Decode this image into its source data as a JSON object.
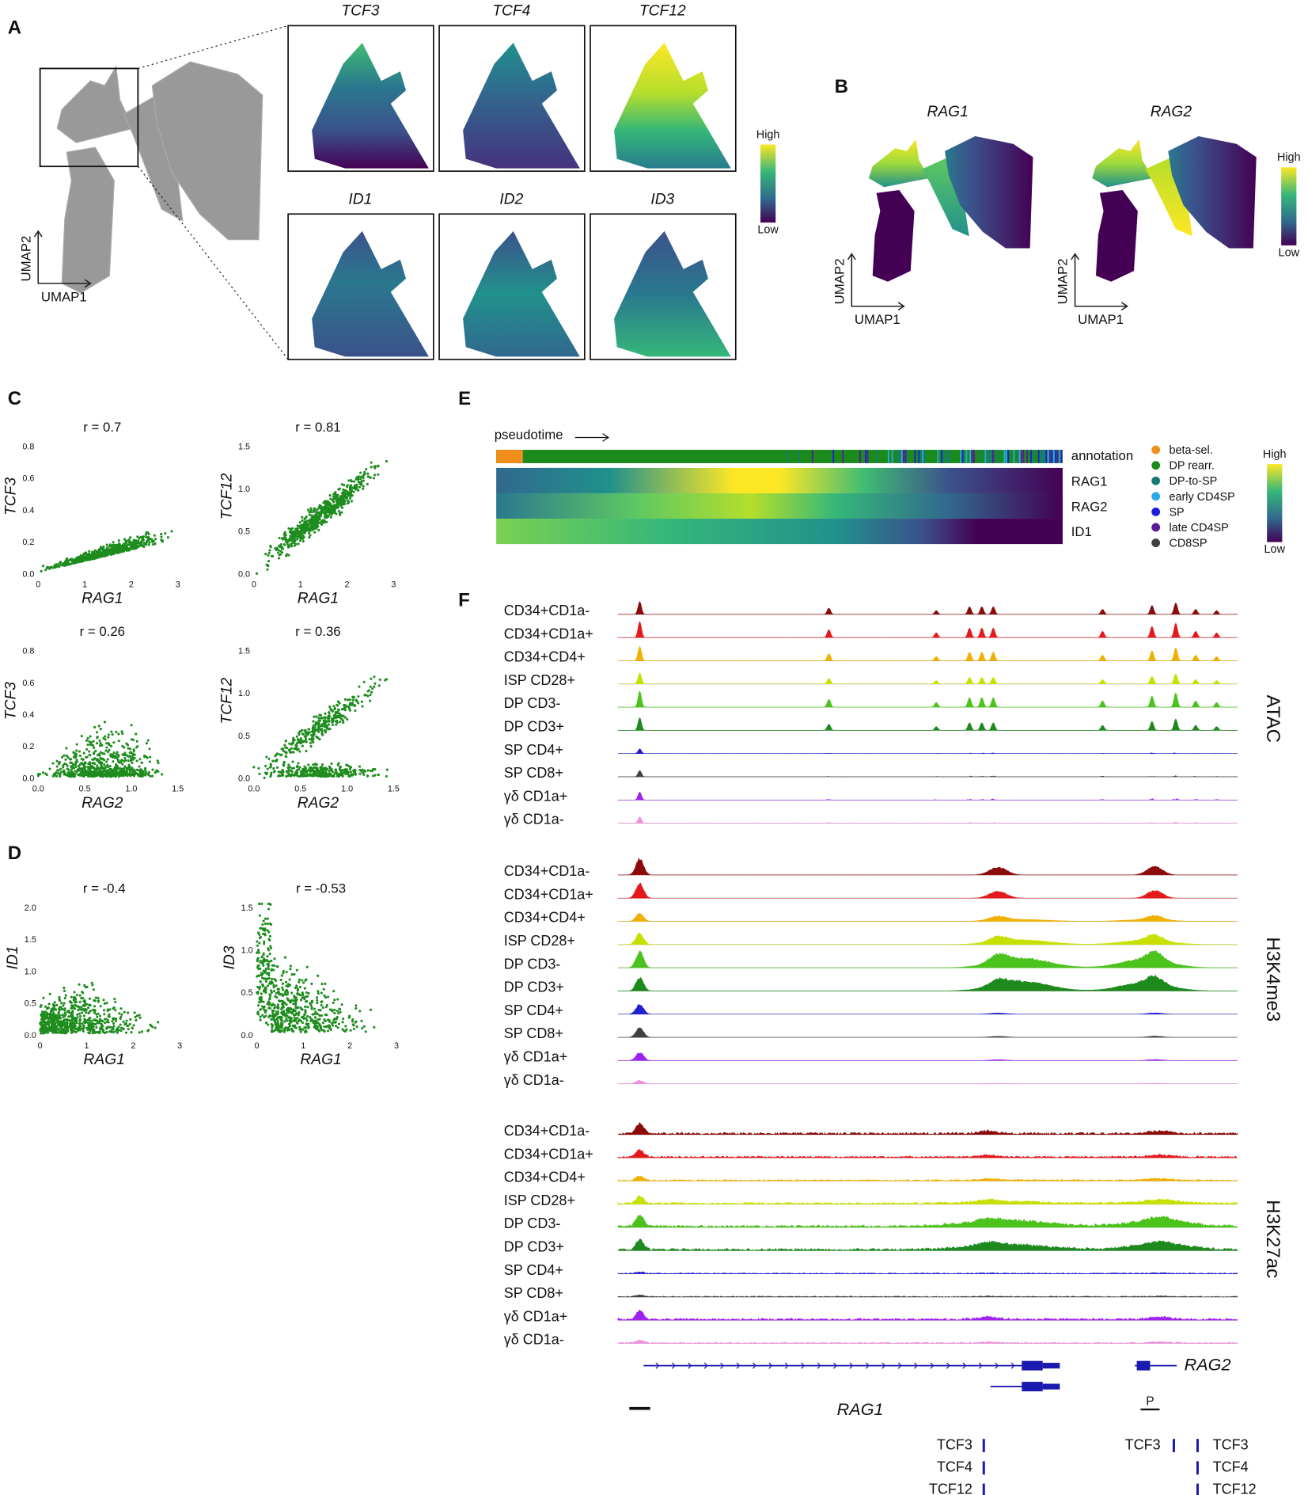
{
  "panels": {
    "A": {
      "label": "A",
      "genes": [
        "TCF3",
        "TCF4",
        "TCF12",
        "ID1",
        "ID2",
        "ID3"
      ],
      "axis_x": "UMAP1",
      "axis_y": "UMAP2",
      "legend_high": "High",
      "legend_low": "Low"
    },
    "B": {
      "label": "B",
      "genes": [
        "RAG1",
        "RAG2"
      ],
      "axis_x": "UMAP1",
      "axis_y": "UMAP2",
      "legend_high": "High",
      "legend_low": "Low"
    },
    "C": {
      "label": "C",
      "plots": [
        {
          "r": "r = 0.7",
          "x_label": "RAG1",
          "y_label": "TCF3",
          "xticks": [
            "0",
            "1",
            "2",
            "3"
          ],
          "yticks": [
            "0.0",
            "0.2",
            "0.4",
            "0.6",
            "0.8"
          ]
        },
        {
          "r": "r = 0.81",
          "x_label": "RAG1",
          "y_label": "TCF12",
          "xticks": [
            "0",
            "1",
            "2",
            "3"
          ],
          "yticks": [
            "0.0",
            "0.5",
            "1.0",
            "1.5"
          ]
        },
        {
          "r": "r = 0.26",
          "x_label": "RAG2",
          "y_label": "TCF3",
          "xticks": [
            "0.0",
            "0.5",
            "1.0",
            "1.5"
          ],
          "yticks": [
            "0.0",
            "0.2",
            "0.4",
            "0.6",
            "0.8"
          ]
        },
        {
          "r": "r = 0.36",
          "x_label": "RAG2",
          "y_label": "TCF12",
          "xticks": [
            "0.0",
            "0.5",
            "1.0",
            "1.5"
          ],
          "yticks": [
            "0.0",
            "0.5",
            "1.0",
            "1.5"
          ]
        }
      ]
    },
    "D": {
      "label": "D",
      "plots": [
        {
          "r": "r = -0.4",
          "x_label": "RAG1",
          "y_label": "ID1",
          "xticks": [
            "0",
            "1",
            "2",
            "3"
          ],
          "yticks": [
            "0.0",
            "0.5",
            "1.0",
            "1.5",
            "2.0"
          ]
        },
        {
          "r": "r = -0.53",
          "x_label": "RAG1",
          "y_label": "ID3",
          "xticks": [
            "0",
            "1",
            "2",
            "3"
          ],
          "yticks": [
            "0.0",
            "0.5",
            "1.0",
            "1.5"
          ]
        }
      ]
    },
    "E": {
      "label": "E",
      "pseudotime": "pseudotime",
      "rows": [
        "annotation",
        "RAG1",
        "RAG2",
        "ID1"
      ],
      "legend": [
        {
          "name": "beta-sel.",
          "color": "#f28e1c"
        },
        {
          "name": "DP rearr.",
          "color": "#1a8a1a"
        },
        {
          "name": "DP-to-SP",
          "color": "#167a78"
        },
        {
          "name": "early CD4SP",
          "color": "#2aa8e8"
        },
        {
          "name": "SP",
          "color": "#1c1ce0"
        },
        {
          "name": "late CD4SP",
          "color": "#5a1a9a"
        },
        {
          "name": "CD8SP",
          "color": "#404040"
        }
      ],
      "legend_high": "High",
      "legend_low": "Low"
    },
    "F": {
      "label": "F",
      "tracks": [
        {
          "name": "ATAC",
          "samples": [
            {
              "name": "CD34+CD1a-",
              "color": "#8b0a0a"
            },
            {
              "name": "CD34+CD1a+",
              "color": "#e3191c"
            },
            {
              "name": "CD34+CD4+",
              "color": "#f0b000"
            },
            {
              "name": "ISP CD28+",
              "color": "#c8e000"
            },
            {
              "name": "DP CD3-",
              "color": "#4cc21c"
            },
            {
              "name": "DP CD3+",
              "color": "#1e8a1e"
            },
            {
              "name": "SP CD4+",
              "color": "#2020d0"
            },
            {
              "name": "SP CD8+",
              "color": "#404040"
            },
            {
              "name": "γδ CD1a+",
              "color": "#a020f0"
            },
            {
              "name": "γδ CD1a-",
              "color": "#f090e0"
            }
          ]
        },
        {
          "name": "H3K4me3",
          "samples": [
            {
              "name": "CD34+CD1a-",
              "color": "#8b0a0a"
            },
            {
              "name": "CD34+CD1a+",
              "color": "#e3191c"
            },
            {
              "name": "CD34+CD4+",
              "color": "#f0b000"
            },
            {
              "name": "ISP CD28+",
              "color": "#c8e000"
            },
            {
              "name": "DP CD3-",
              "color": "#4cc21c"
            },
            {
              "name": "DP CD3+",
              "color": "#1e8a1e"
            },
            {
              "name": "SP CD4+",
              "color": "#2020d0"
            },
            {
              "name": "SP CD8+",
              "color": "#404040"
            },
            {
              "name": "γδ CD1a+",
              "color": "#a020f0"
            },
            {
              "name": "γδ CD1a-",
              "color": "#f090e0"
            }
          ]
        },
        {
          "name": "H3K27ac",
          "samples": [
            {
              "name": "CD34+CD1a-",
              "color": "#8b0a0a"
            },
            {
              "name": "CD34+CD1a+",
              "color": "#e3191c"
            },
            {
              "name": "CD34+CD4+",
              "color": "#f0b000"
            },
            {
              "name": "ISP CD28+",
              "color": "#c8e000"
            },
            {
              "name": "DP CD3-",
              "color": "#4cc21c"
            },
            {
              "name": "DP CD3+",
              "color": "#1e8a1e"
            },
            {
              "name": "SP CD4+",
              "color": "#2020d0"
            },
            {
              "name": "SP CD8+",
              "color": "#404040"
            },
            {
              "name": "γδ CD1a+",
              "color": "#a020f0"
            },
            {
              "name": "γδ CD1a-",
              "color": "#f090e0"
            }
          ]
        }
      ],
      "genes": [
        "RAG1",
        "RAG2"
      ],
      "promoter": "P",
      "motifs_left": [
        "TCF3",
        "TCF4",
        "TCF12"
      ],
      "motifs_mid": [
        "TCF3"
      ],
      "motifs_right": [
        "TCF3",
        "TCF4",
        "TCF12"
      ]
    }
  }
}
